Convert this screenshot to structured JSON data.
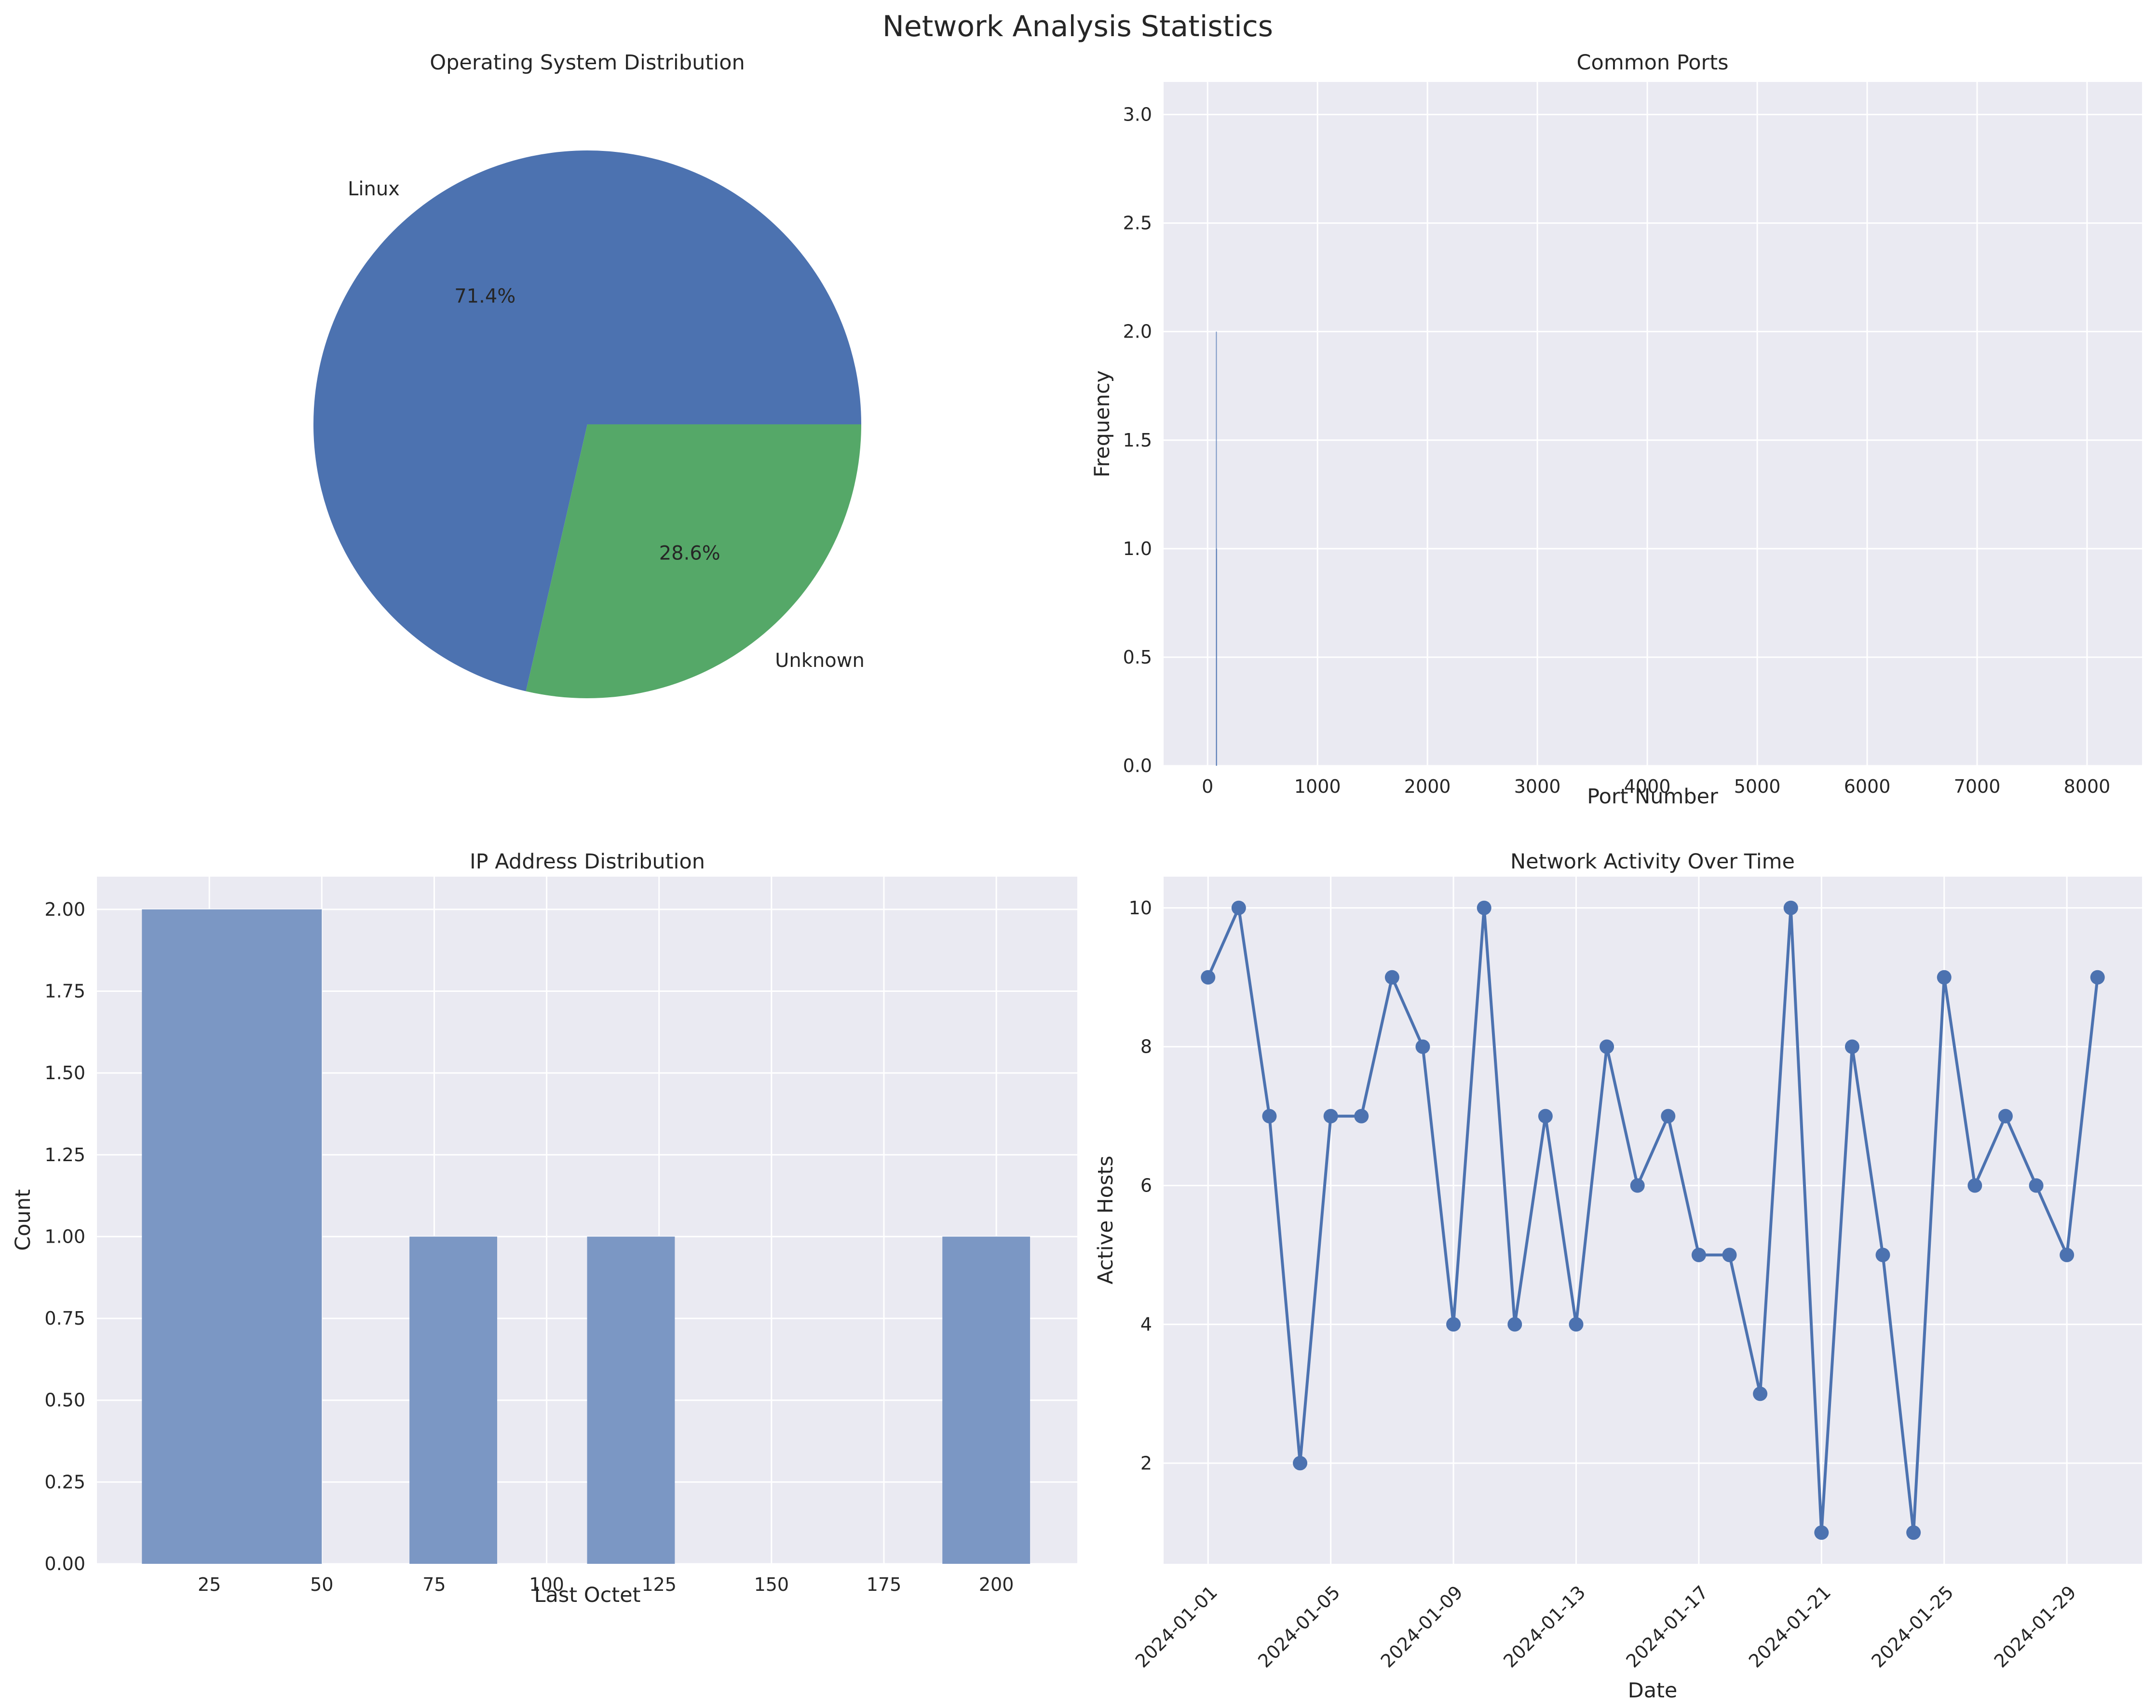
{
  "figure_title": "Network Analysis Statistics",
  "colors": {
    "panel_bg": "#eaeaf2",
    "grid": "#ffffff",
    "blue": "#4c72b0",
    "green": "#55a868",
    "bar_alpha_blue": "#7b97c4"
  },
  "chart_data": [
    {
      "type": "pie",
      "title": "Operating System Distribution",
      "labels": [
        "Linux",
        "Unknown"
      ],
      "values": [
        71.4,
        28.6
      ],
      "autopct": [
        "71.4%",
        "28.6%"
      ],
      "colors": [
        "#4c72b0",
        "#55a868"
      ]
    },
    {
      "type": "bar",
      "title": "Common Ports",
      "xlabel": "Port Number",
      "ylabel": "Frequency",
      "xlim": [
        -400,
        8500
      ],
      "ylim": [
        0,
        3.15
      ],
      "xticks": [
        0,
        1000,
        2000,
        3000,
        4000,
        5000,
        6000,
        7000,
        8000
      ],
      "yticks": [
        0.0,
        0.5,
        1.0,
        1.5,
        2.0,
        2.5,
        3.0
      ],
      "ytick_labels": [
        "0.0",
        "0.5",
        "1.0",
        "1.5",
        "2.0",
        "2.5",
        "3.0"
      ],
      "bars": [
        {
          "x": 80,
          "value": 2
        },
        {
          "x": 82,
          "value": 1
        }
      ]
    },
    {
      "type": "bar",
      "title": "IP Address Distribution",
      "xlabel": "Last Octet",
      "ylabel": "Count",
      "xlim": [
        0,
        218
      ],
      "ylim": [
        0,
        2.1
      ],
      "xticks": [
        25,
        50,
        75,
        100,
        125,
        150,
        175,
        200
      ],
      "yticks": [
        0.0,
        0.25,
        0.5,
        0.75,
        1.0,
        1.25,
        1.5,
        1.75,
        2.0
      ],
      "ytick_labels": [
        "0.00",
        "0.25",
        "0.50",
        "0.75",
        "1.00",
        "1.25",
        "1.50",
        "1.75",
        "2.00"
      ],
      "bins": [
        {
          "x0": 10,
          "x1": 50,
          "count": 2
        },
        {
          "x0": 69.5,
          "x1": 89,
          "count": 1
        },
        {
          "x0": 109,
          "x1": 128.5,
          "count": 1
        },
        {
          "x0": 188,
          "x1": 207.5,
          "count": 1
        }
      ]
    },
    {
      "type": "line",
      "title": "Network Activity Over Time",
      "xlabel": "Date",
      "ylabel": "Active Hosts",
      "ylim": [
        0.55,
        10.45
      ],
      "yticks": [
        2,
        4,
        6,
        8,
        10
      ],
      "x": [
        "2024-01-01",
        "2024-01-02",
        "2024-01-03",
        "2024-01-04",
        "2024-01-05",
        "2024-01-06",
        "2024-01-07",
        "2024-01-08",
        "2024-01-09",
        "2024-01-10",
        "2024-01-11",
        "2024-01-12",
        "2024-01-13",
        "2024-01-14",
        "2024-01-15",
        "2024-01-16",
        "2024-01-17",
        "2024-01-18",
        "2024-01-19",
        "2024-01-20",
        "2024-01-21",
        "2024-01-22",
        "2024-01-23",
        "2024-01-24",
        "2024-01-25",
        "2024-01-26",
        "2024-01-27",
        "2024-01-28",
        "2024-01-29",
        "2024-01-30"
      ],
      "values": [
        9,
        10,
        7,
        2,
        7,
        7,
        9,
        8,
        4,
        10,
        4,
        7,
        4,
        8,
        6,
        7,
        5,
        5,
        3,
        10,
        1,
        8,
        5,
        1,
        9,
        6,
        7,
        6,
        5,
        9
      ],
      "xticks": [
        "2024-01-01",
        "2024-01-05",
        "2024-01-09",
        "2024-01-13",
        "2024-01-17",
        "2024-01-21",
        "2024-01-25",
        "2024-01-29"
      ]
    }
  ]
}
